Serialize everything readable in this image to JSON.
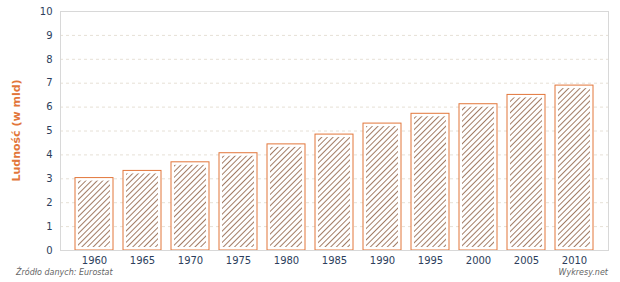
{
  "chart_data": {
    "type": "bar",
    "y_label": "Ludność (w mld)",
    "caption": "Źródło danych: Eurostat",
    "credit": "Wykresy.net",
    "categories": [
      "1960",
      "1965",
      "1970",
      "1975",
      "1980",
      "1985",
      "1990",
      "1995",
      "2000",
      "2005",
      "2010"
    ],
    "values": [
      3.03,
      3.33,
      3.69,
      4.07,
      4.44,
      4.85,
      5.31,
      5.72,
      6.12,
      6.51,
      6.9
    ],
    "color": "#e2763a",
    "ylim": [
      0,
      10
    ],
    "yticks": [
      0,
      1,
      2,
      3,
      4,
      5,
      6,
      7,
      8,
      9,
      10
    ],
    "grid": true
  }
}
